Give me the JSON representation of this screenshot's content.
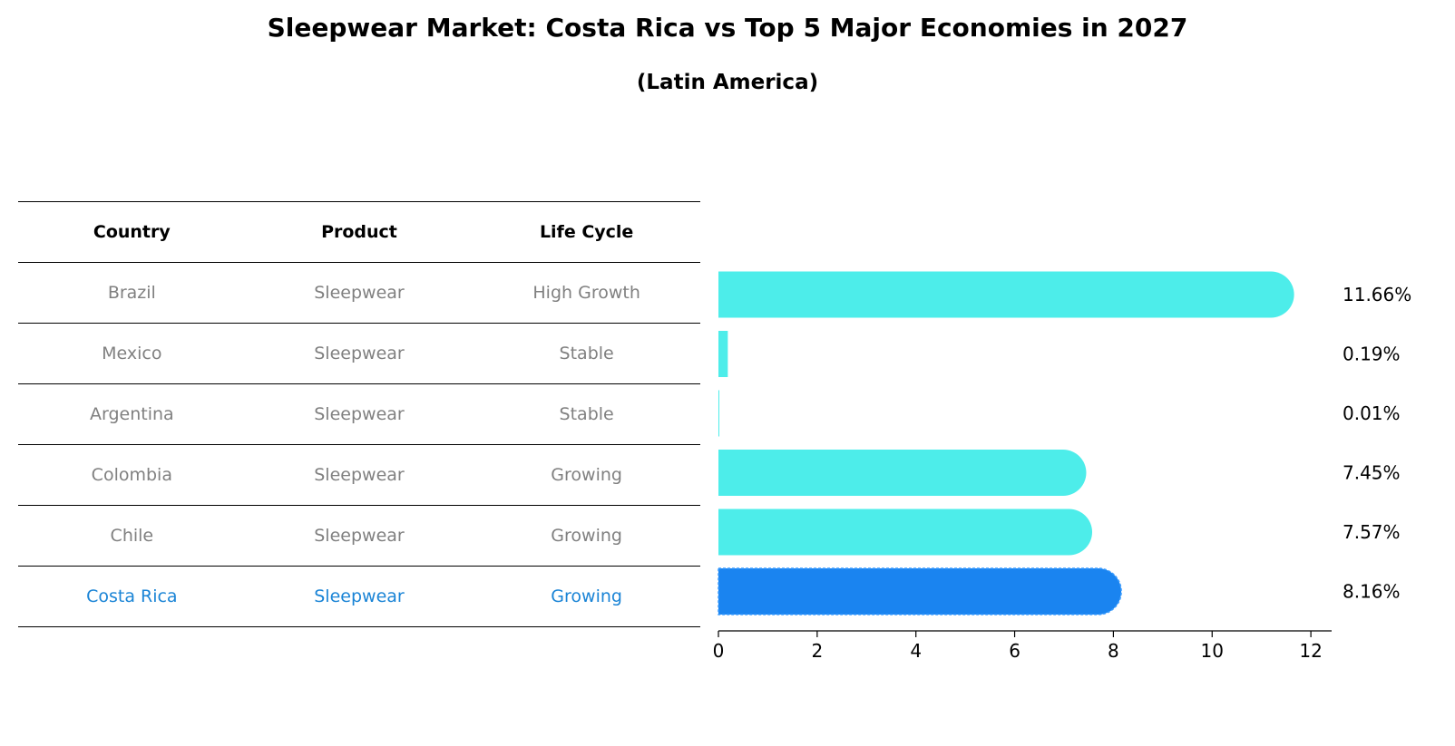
{
  "title": "Sleepwear Market: Costa Rica vs Top 5 Major Economies in 2027",
  "subtitle": "(Latin America)",
  "table": {
    "headers": [
      "Country",
      "Product",
      "Life Cycle"
    ],
    "rows": [
      {
        "country": "Brazil",
        "product": "Sleepwear",
        "life_cycle": "High Growth"
      },
      {
        "country": "Mexico",
        "product": "Sleepwear",
        "life_cycle": "Stable"
      },
      {
        "country": "Argentina",
        "product": "Sleepwear",
        "life_cycle": "Stable"
      },
      {
        "country": "Colombia",
        "product": "Sleepwear",
        "life_cycle": "Growing"
      },
      {
        "country": "Chile",
        "product": "Sleepwear",
        "life_cycle": "Growing"
      },
      {
        "country": "Costa Rica",
        "product": "Sleepwear",
        "life_cycle": "Growing"
      }
    ]
  },
  "chart_data": {
    "type": "bar",
    "orientation": "horizontal",
    "categories": [
      "Brazil",
      "Mexico",
      "Argentina",
      "Colombia",
      "Chile",
      "Costa Rica"
    ],
    "values": [
      11.66,
      0.19,
      0.01,
      7.45,
      7.57,
      8.16
    ],
    "value_labels": [
      "11.66%",
      "0.19%",
      "0.01%",
      "7.45%",
      "7.57%",
      "8.16%"
    ],
    "highlight": "Costa Rica",
    "xlim": [
      0,
      12.2
    ],
    "xticks": [
      0,
      2,
      4,
      6,
      8,
      10,
      12
    ],
    "title": "Sleepwear Market: Costa Rica vs Top 5 Major Economies in 2027",
    "subtitle": "(Latin America)",
    "xlabel": "",
    "ylabel": "",
    "grid": false,
    "colors": {
      "default": "#4ded ea",
      "highlight": "#1a84f0"
    }
  }
}
